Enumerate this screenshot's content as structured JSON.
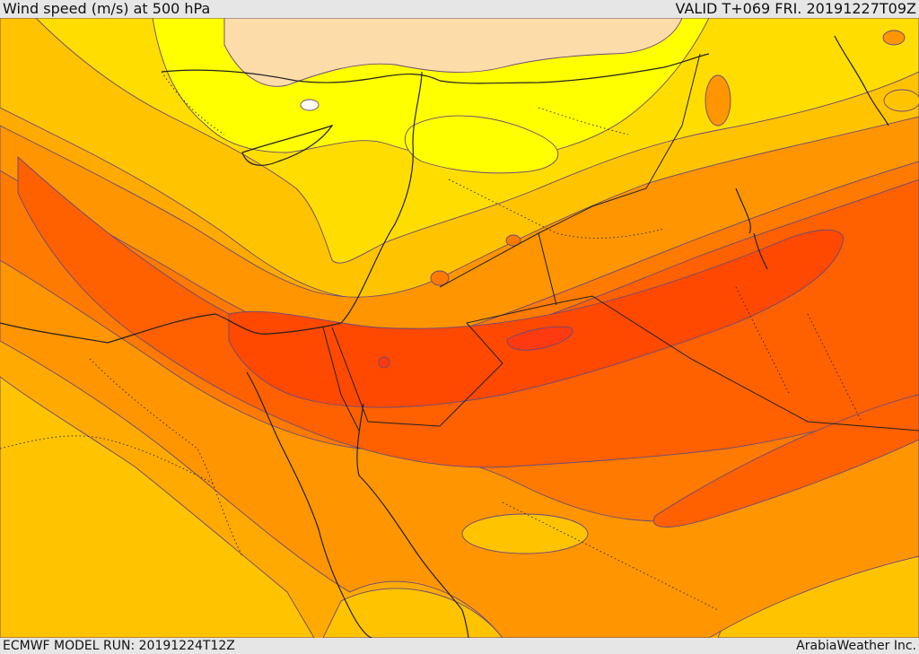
{
  "header": {
    "title": "Wind speed (m/s) at 500 hPa",
    "valid_time": "VALID T+069 FRI. 20191227T09Z"
  },
  "footer": {
    "model_run": "ECMWF MODEL RUN: 20191224T12Z",
    "credit": "ArabiaWeather Inc."
  },
  "map": {
    "field": "wind speed",
    "level": "500 hPa",
    "colors": {
      "white": "#ffffff",
      "peach": "#fcdca8",
      "yellow": "#ffff00",
      "gold": "#ffdd00",
      "amber": "#ffc300",
      "orange_light": "#ffaa00",
      "orange": "#ff9500",
      "orange_dark": "#ff7a00",
      "red_orange": "#ff6000",
      "red": "#ff4800",
      "red_core": "#ff3a10"
    }
  }
}
